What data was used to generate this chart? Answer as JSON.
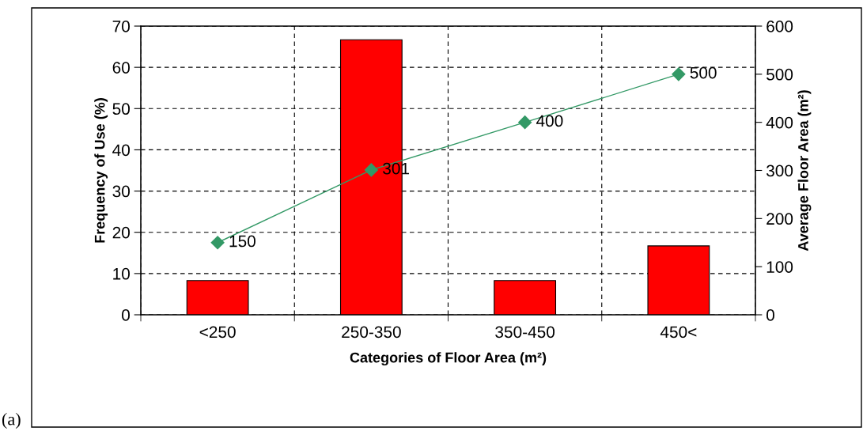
{
  "chart_data": {
    "type": "bar",
    "categories": [
      "<250",
      "250-350",
      "350-450",
      "450<"
    ],
    "xlabel": "Categories of Floor Area (m²)",
    "ylabel": "Frequency of Use (%)",
    "y2label": "Average Floor Area (m²)",
    "series": [
      {
        "color": "#ff0000",
        "values": [
          8.3,
          66.7,
          8.3,
          16.7
        ]
      },
      {
        "type": "line",
        "axis": "y2",
        "color": "#339966",
        "values": [
          150,
          301,
          400,
          500
        ],
        "value_labels": [
          "150",
          "301",
          "400",
          "500"
        ],
        "marker": "diamond"
      }
    ],
    "ylim": [
      0,
      70
    ],
    "yticks": [
      0,
      10,
      20,
      30,
      40,
      50,
      60,
      70
    ],
    "y2lim": [
      0,
      600
    ],
    "y2ticks": [
      0,
      100,
      200,
      300,
      400,
      500,
      600
    ],
    "grid": true,
    "legend": false,
    "annotations": [
      "(a)"
    ]
  }
}
